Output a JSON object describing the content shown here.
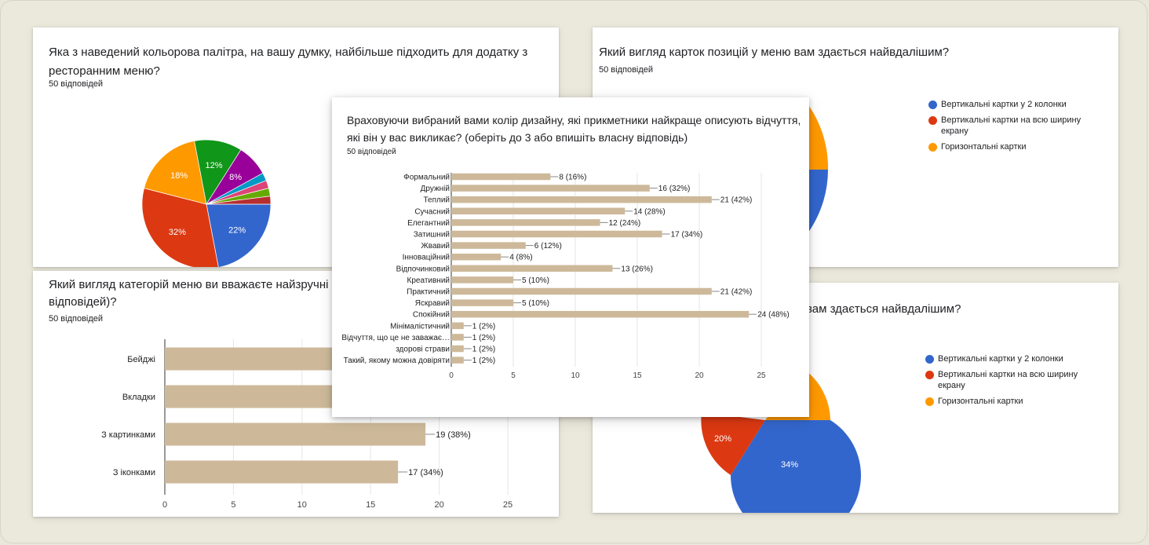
{
  "colors": {
    "blue": "#3366cc",
    "red": "#dc3912",
    "orange": "#ff9900",
    "green": "#109618",
    "purple": "#990099",
    "cyan": "#0099c6",
    "pink": "#dd4477",
    "lime": "#66aa00",
    "darkred": "#b82e2e",
    "bar": "#cdb99a"
  },
  "chart_data": [
    {
      "type": "pie",
      "title": "Яка з наведений кольорова палітра, на вашу думку, найбільше підходить для додатку з ресторанним меню?",
      "subtitle": "50 відповідей",
      "values": [
        22,
        32,
        18,
        12,
        8,
        2,
        2,
        2,
        2
      ],
      "slice_labels": [
        "22%",
        "32%",
        "18%",
        "12%",
        "8%",
        "",
        "",
        "",
        ""
      ]
    },
    {
      "type": "pie",
      "title": "Який вигляд карток позицій у меню вам здається найвдалішим?",
      "subtitle": "50 відповідей",
      "legend": [
        "Вертикальні картки у 2 колонки",
        "Вертикальні картки на всю ширину екрану",
        "Горизонтальні картки"
      ]
    },
    {
      "type": "bar",
      "orientation": "horizontal",
      "title": "Який вигляд категорій меню ви вважаєте найзручні",
      "title_line2": "відповідей)?",
      "subtitle": "50 відповідей",
      "categories": [
        "Бейджі",
        "Вкладки",
        "З картинками",
        "З іконками"
      ],
      "values": [
        null,
        null,
        19,
        17
      ],
      "data_labels": [
        "",
        "",
        "19 (38%)",
        "17 (34%)"
      ],
      "ticks": [
        "0",
        "5",
        "10",
        "15",
        "20",
        "25"
      ],
      "xlim": [
        0,
        25
      ]
    },
    {
      "type": "pie",
      "title": "вам здається найвдалішим?",
      "legend": [
        "Вертикальні картки у 2 колонки",
        "Вертикальні картки на всю ширину екрану",
        "Горизонтальні картки"
      ],
      "slice_labels": [
        "34%",
        "20%"
      ],
      "values": [
        34,
        20
      ]
    },
    {
      "type": "bar",
      "orientation": "horizontal",
      "title": "Враховуючи вибраний вами колір дизайну, які прикметники найкраще описують відчуття, які він у вас викликає? (оберіть до 3 або впишіть власну відповідь)",
      "subtitle": "50 відповідей",
      "categories": [
        "Формальний",
        "Дружній",
        "Теплий",
        "Сучасний",
        "Елегантний",
        "Затишний",
        "Жвавий",
        "Інноваційний",
        "Відпочинковий",
        "Креативний",
        "Практичний",
        "Яскравий",
        "Спокійний",
        "Мінімалістичний",
        "Відчуття, що це не заважає…",
        "здорові страви",
        "Такий, якому можна довіряти"
      ],
      "values": [
        8,
        16,
        21,
        14,
        12,
        17,
        6,
        4,
        13,
        5,
        21,
        5,
        24,
        1,
        1,
        1,
        1
      ],
      "data_labels": [
        "8 (16%)",
        "16 (32%)",
        "21 (42%)",
        "14 (28%)",
        "12 (24%)",
        "17 (34%)",
        "6 (12%)",
        "4 (8%)",
        "13 (26%)",
        "5 (10%)",
        "21 (42%)",
        "5 (10%)",
        "24 (48%)",
        "1 (2%)",
        "1 (2%)",
        "1 (2%)",
        "1 (2%)"
      ],
      "ticks": [
        "0",
        "5",
        "10",
        "15",
        "20",
        "25"
      ],
      "xlim": [
        0,
        25
      ]
    }
  ]
}
